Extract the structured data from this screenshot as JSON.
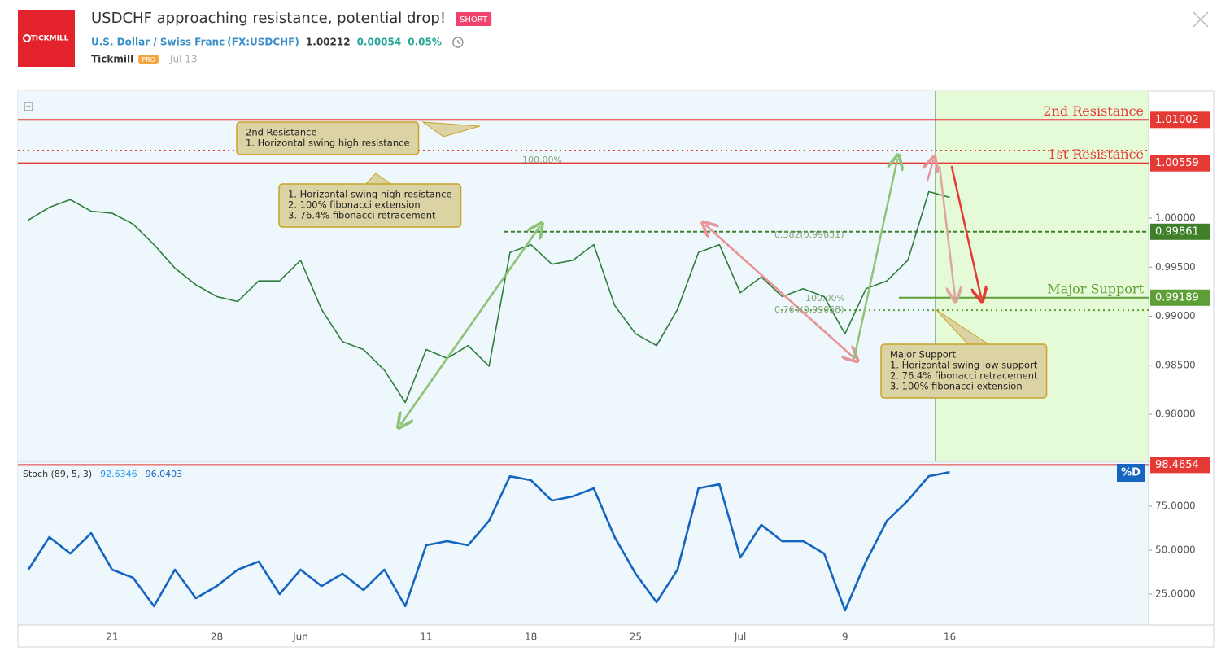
{
  "header": {
    "logo": "TICKMILL",
    "title": "USDCHF approaching resistance, potential drop!",
    "badge": "SHORT",
    "symbol_name": "U.S. Dollar / Swiss Franc",
    "symbol_code": "(FX:USDCHF)",
    "price": 1.00212,
    "change": 0.00054,
    "change_percent": {
      "value": 0.05,
      "label": "0.05%"
    },
    "author": "Tickmill",
    "author_badge": "PRO",
    "date": "Jul 13"
  },
  "chart_data": [
    {
      "type": "line",
      "categories": [
        null,
        null,
        null,
        null,
        "21",
        null,
        null,
        null,
        null,
        "28",
        null,
        null,
        null,
        "Jun",
        null,
        null,
        null,
        null,
        null,
        "11",
        null,
        null,
        null,
        null,
        "18",
        null,
        null,
        null,
        null,
        "25",
        null,
        null,
        null,
        null,
        "Jul",
        null,
        null,
        null,
        null,
        "9",
        null,
        null,
        null,
        null,
        "16",
        null,
        null,
        null,
        null,
        null,
        null,
        null,
        null,
        null
      ],
      "values": [
        0.9998,
        1.0011,
        1.0019,
        1.0007,
        1.0005,
        0.9994,
        0.9973,
        0.9949,
        0.9932,
        0.992,
        0.9915,
        0.9936,
        0.9936,
        0.9957,
        0.9907,
        0.9874,
        0.9866,
        0.9845,
        0.9812,
        0.9866,
        0.9857,
        0.987,
        0.9849,
        0.9965,
        0.9973,
        0.9953,
        0.9957,
        0.9973,
        0.9911,
        0.9882,
        0.987,
        0.9907,
        0.9965,
        0.9973,
        0.9924,
        0.994,
        0.992,
        0.9928,
        0.992,
        0.9882,
        0.9928,
        0.9936,
        0.9957,
        1.0027,
        1.00212,
        null,
        null,
        null,
        null,
        null,
        null,
        null,
        null,
        null
      ],
      "color": "#2f7d3b",
      "ylim": [
        0.97519,
        1.01295
      ],
      "yticks": [
        {
          "value": 0.98,
          "label": "0.98000"
        },
        {
          "value": 0.985,
          "label": "0.98500"
        },
        {
          "value": 0.99,
          "label": "0.99000"
        },
        {
          "value": 0.995,
          "label": "0.99500"
        },
        {
          "value": 1,
          "label": "1.00000"
        }
      ],
      "levels": [
        {
          "label": "2nd Resistance",
          "value": 1.01002,
          "color": "#e53935",
          "style": "solid"
        },
        {
          "label": "1st Resistance",
          "value": 1.00559,
          "color": "#e53935",
          "style": "solid"
        },
        {
          "value": 0.99861,
          "color": "#3f7f2a",
          "style": "dashed"
        },
        {
          "label": "Major Support",
          "value": 0.99189,
          "color": "#5e9e36",
          "style": "solid"
        }
      ],
      "dotted_levels": [
        {
          "value": 1.00689,
          "color": "#e53935"
        },
        {
          "value": 0.99062,
          "color": "#5e9e36"
        }
      ],
      "fib_labels": [
        "100.00%",
        "0.382(0.99831)",
        "100.00%",
        "0.764(0.99058)"
      ],
      "callouts": [
        [
          "2nd Resistance",
          "1. Horizontal swing high resistance"
        ],
        [
          "1. Horizontal swing high resistance",
          "2. 100% fibonacci extension",
          "3. 76.4% fibonacci retracement"
        ],
        [
          "Major Support",
          "1. Horizontal swing low support",
          "2. 76.4% fibonacci retracement",
          "3. 100% fibonacci extension"
        ]
      ]
    },
    {
      "type": "line",
      "title": "Stoch (89, 5, 3)",
      "readings": [
        92.6346,
        96.0403
      ],
      "values": [
        38.9,
        57.4,
        48.1,
        59.7,
        38.9,
        34.3,
        18.1,
        38.9,
        22.7,
        29.6,
        38.9,
        43.5,
        25,
        38.9,
        29.6,
        36.6,
        27.3,
        38.9,
        18.1,
        52.8,
        55.1,
        52.8,
        66.7,
        92.1,
        89.8,
        78.2,
        80.6,
        85.2,
        57.4,
        36.6,
        20.4,
        38.9,
        85.2,
        87.5,
        45.8,
        64.4,
        55.1,
        55.1,
        48.1,
        15.7,
        43.5,
        66.7,
        78.2,
        92.1,
        94.4,
        null,
        null,
        null,
        null,
        null,
        null,
        null,
        null,
        null
      ],
      "color": "#1565c0",
      "ylim": [
        7.4,
        100.5
      ],
      "yticks": [
        {
          "value": 25,
          "label": "25.0000"
        },
        {
          "value": 50,
          "label": "50.0000"
        },
        {
          "value": 75,
          "label": "75.0000"
        }
      ],
      "level": 98.4654,
      "level_color": "#e53935",
      "series_label": "%D"
    }
  ]
}
